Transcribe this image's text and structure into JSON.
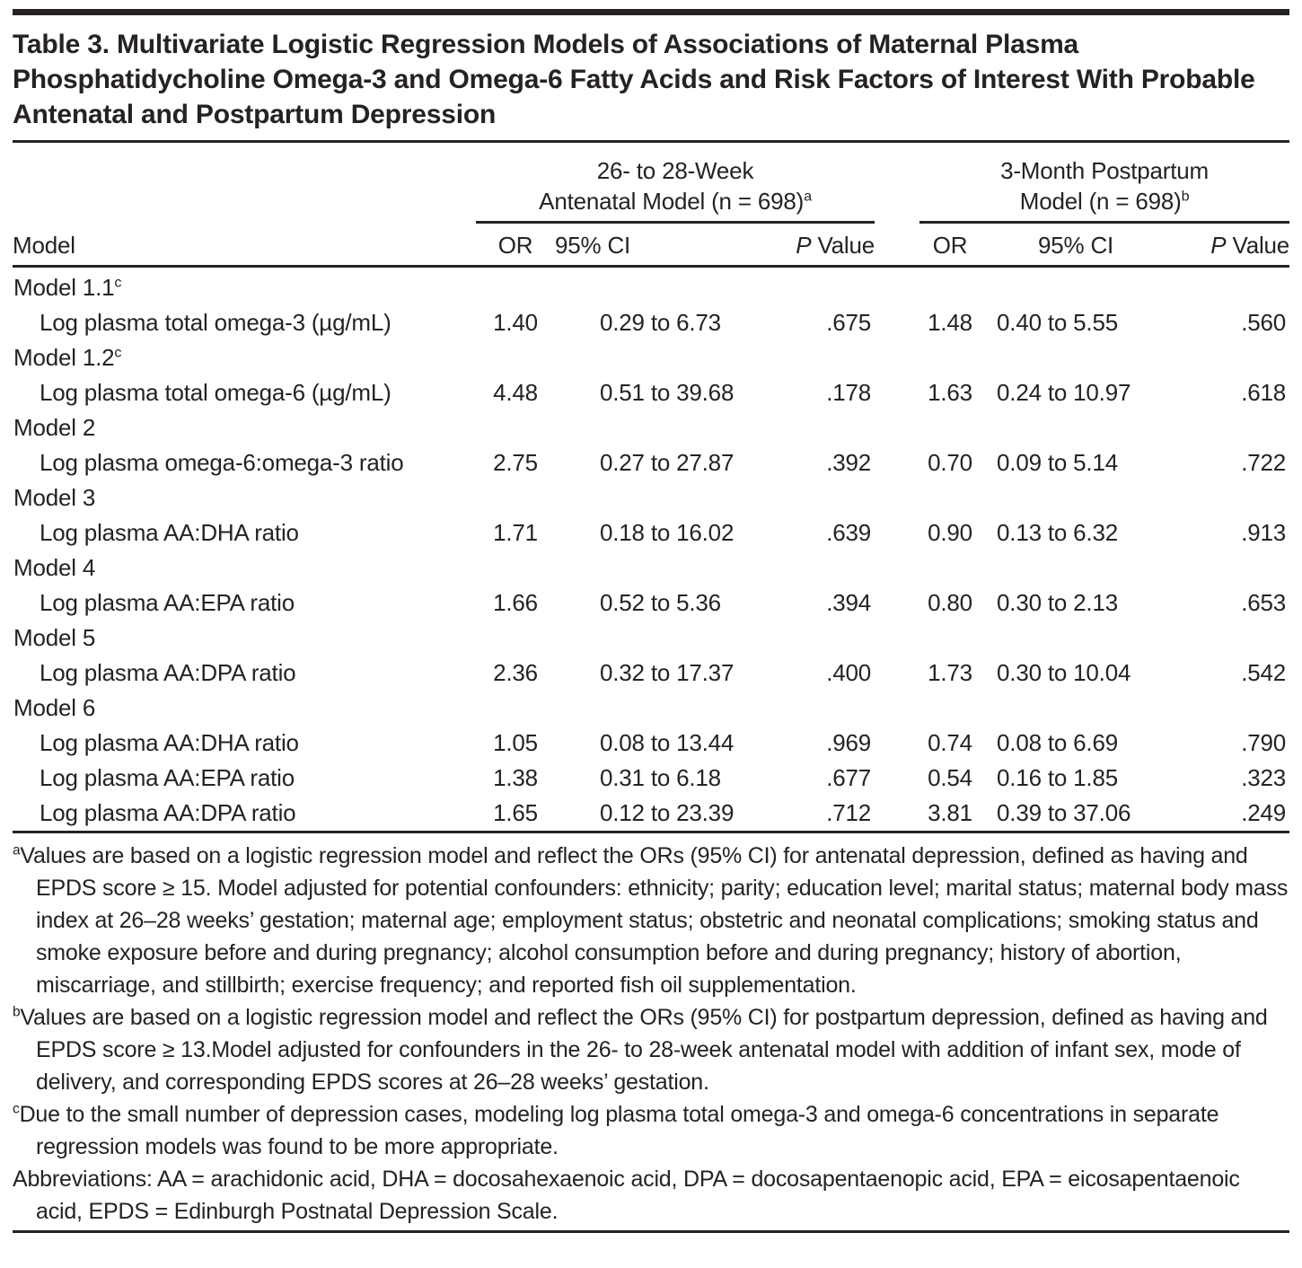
{
  "colors": {
    "ink": "#262223",
    "background": "#ffffff"
  },
  "table": {
    "title": "Table 3. Multivariate Logistic Regression Models of Associations of Maternal Plasma Phosphatidycholine Omega-3 and Omega-6 Fatty Acids and Risk Factors of Interest With Probable Antenatal and Postpartum Depression",
    "model_col_header": "Model",
    "groups": [
      {
        "line1": "26- to 28-Week",
        "line2": "Antenatal Model (n = 698)",
        "sup": "a"
      },
      {
        "line1": "3-Month Postpartum",
        "line2": "Model (n = 698)",
        "sup": "b"
      }
    ],
    "sub_headers": {
      "or": "OR",
      "ci": "95% CI",
      "p_italic": "P",
      "p_rest": " Value"
    },
    "rows": [
      {
        "type": "section",
        "label": "Model 1.1",
        "sup": "c"
      },
      {
        "type": "data",
        "label": "Log plasma total omega-3 (µg/mL)",
        "antenatal": {
          "or": "1.40",
          "ci": "0.29 to 6.73",
          "p": ".675"
        },
        "postpartum": {
          "or": "1.48",
          "ci": "0.40 to 5.55",
          "p": ".560"
        }
      },
      {
        "type": "section",
        "label": "Model 1.2",
        "sup": "c"
      },
      {
        "type": "data",
        "label": "Log plasma total omega-6 (µg/mL)",
        "antenatal": {
          "or": "4.48",
          "ci": "0.51 to 39.68",
          "p": ".178"
        },
        "postpartum": {
          "or": "1.63",
          "ci": "0.24 to 10.97",
          "p": ".618"
        }
      },
      {
        "type": "section",
        "label": "Model 2",
        "sup": ""
      },
      {
        "type": "data",
        "label": "Log plasma omega-6:omega-3 ratio",
        "antenatal": {
          "or": "2.75",
          "ci": "0.27 to 27.87",
          "p": ".392"
        },
        "postpartum": {
          "or": "0.70",
          "ci": "0.09 to 5.14",
          "p": ".722"
        }
      },
      {
        "type": "section",
        "label": "Model 3",
        "sup": ""
      },
      {
        "type": "data",
        "label": "Log plasma AA:DHA ratio",
        "antenatal": {
          "or": "1.71",
          "ci": "0.18 to 16.02",
          "p": ".639"
        },
        "postpartum": {
          "or": "0.90",
          "ci": "0.13 to 6.32",
          "p": ".913"
        }
      },
      {
        "type": "section",
        "label": "Model 4",
        "sup": ""
      },
      {
        "type": "data",
        "label": "Log plasma AA:EPA ratio",
        "antenatal": {
          "or": "1.66",
          "ci": "0.52 to 5.36",
          "p": ".394"
        },
        "postpartum": {
          "or": "0.80",
          "ci": "0.30 to 2.13",
          "p": ".653"
        }
      },
      {
        "type": "section",
        "label": "Model 5",
        "sup": ""
      },
      {
        "type": "data",
        "label": "Log plasma AA:DPA ratio",
        "antenatal": {
          "or": "2.36",
          "ci": "0.32 to 17.37",
          "p": ".400"
        },
        "postpartum": {
          "or": "1.73",
          "ci": "0.30 to 10.04",
          "p": ".542"
        }
      },
      {
        "type": "section",
        "label": "Model 6",
        "sup": ""
      },
      {
        "type": "data",
        "label": "Log plasma AA:DHA ratio",
        "antenatal": {
          "or": "1.05",
          "ci": "0.08 to 13.44",
          "p": ".969"
        },
        "postpartum": {
          "or": "0.74",
          "ci": "0.08 to 6.69",
          "p": ".790"
        }
      },
      {
        "type": "data",
        "label": "Log plasma AA:EPA ratio",
        "antenatal": {
          "or": "1.38",
          "ci": "0.31 to 6.18",
          "p": ".677"
        },
        "postpartum": {
          "or": "0.54",
          "ci": "0.16 to 1.85",
          "p": ".323"
        }
      },
      {
        "type": "data",
        "label": "Log plasma AA:DPA ratio",
        "antenatal": {
          "or": "1.65",
          "ci": "0.12 to 23.39",
          "p": ".712"
        },
        "postpartum": {
          "or": "3.81",
          "ci": "0.39 to 37.06",
          "p": ".249"
        }
      }
    ],
    "footnotes": [
      {
        "sup": "a",
        "text": "Values are based on a logistic regression model and reflect the ORs (95% CI) for antenatal depression, defined as having and EPDS score ≥ 15. Model adjusted for potential confounders: ethnicity; parity; education level; marital status; maternal body mass index at 26–28 weeks’ gestation; maternal age; employment status; obstetric and neonatal complications; smoking status and smoke exposure before and during pregnancy; alcohol consumption before and during pregnancy; history of abortion, miscarriage, and stillbirth; exercise frequency; and reported fish oil supplementation."
      },
      {
        "sup": "b",
        "text": "Values are based on a logistic regression model and reflect the ORs (95% CI) for postpartum depression, defined as having and EPDS score ≥ 13.Model adjusted for confounders in the 26- to 28-week antenatal model with addition of infant sex, mode of delivery, and corresponding EPDS scores at 26–28 weeks’ gestation."
      },
      {
        "sup": "c",
        "text": "Due to the small number of depression cases, modeling log plasma total omega-3 and omega-6 concentrations in separate regression models was found to be more appropriate."
      },
      {
        "sup": "",
        "text": "Abbreviations: AA = arachidonic acid, DHA = docosahexaenoic acid, DPA = docosapentaenopic acid, EPA = eicosapentaenoic acid, EPDS = Edinburgh Postnatal Depression Scale."
      }
    ]
  }
}
